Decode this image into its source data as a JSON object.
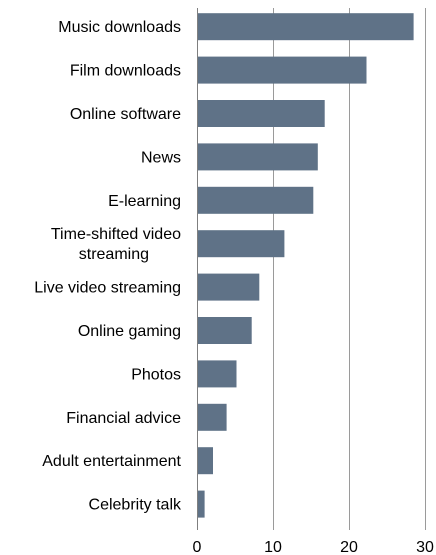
{
  "chart_data": {
    "type": "bar",
    "orientation": "horizontal",
    "title": "",
    "xlabel": "",
    "ylabel": "",
    "categories": [
      "Music downloads",
      "Film downloads",
      "Online software",
      "News",
      "E-learning",
      "Time-shifted video streaming",
      "Live video streaming",
      "Online gaming",
      "Photos",
      "Financial advice",
      "Adult entertainment",
      "Celebrity talk"
    ],
    "category_lines": [
      [
        "Music downloads"
      ],
      [
        "Film downloads"
      ],
      [
        "Online software"
      ],
      [
        "News"
      ],
      [
        "E-learning"
      ],
      [
        "Time-shifted video",
        "streaming"
      ],
      [
        "Live video streaming"
      ],
      [
        "Online gaming"
      ],
      [
        "Photos"
      ],
      [
        "Financial advice"
      ],
      [
        "Adult entertainment"
      ],
      [
        "Celebrity talk"
      ]
    ],
    "values": [
      28.5,
      22.3,
      16.8,
      15.9,
      15.3,
      11.5,
      8.2,
      7.2,
      5.2,
      3.9,
      2.1,
      1.0
    ],
    "xlim": [
      0,
      30
    ],
    "xticks": [
      0,
      10,
      20,
      30
    ],
    "xtick_labels": [
      "0",
      "10",
      "20",
      "30"
    ],
    "grid": "vertical",
    "legend": "none",
    "bar_color": "#5f7287",
    "grid_color": "#9a9a9a",
    "axis_color": "#7f7f7f"
  }
}
